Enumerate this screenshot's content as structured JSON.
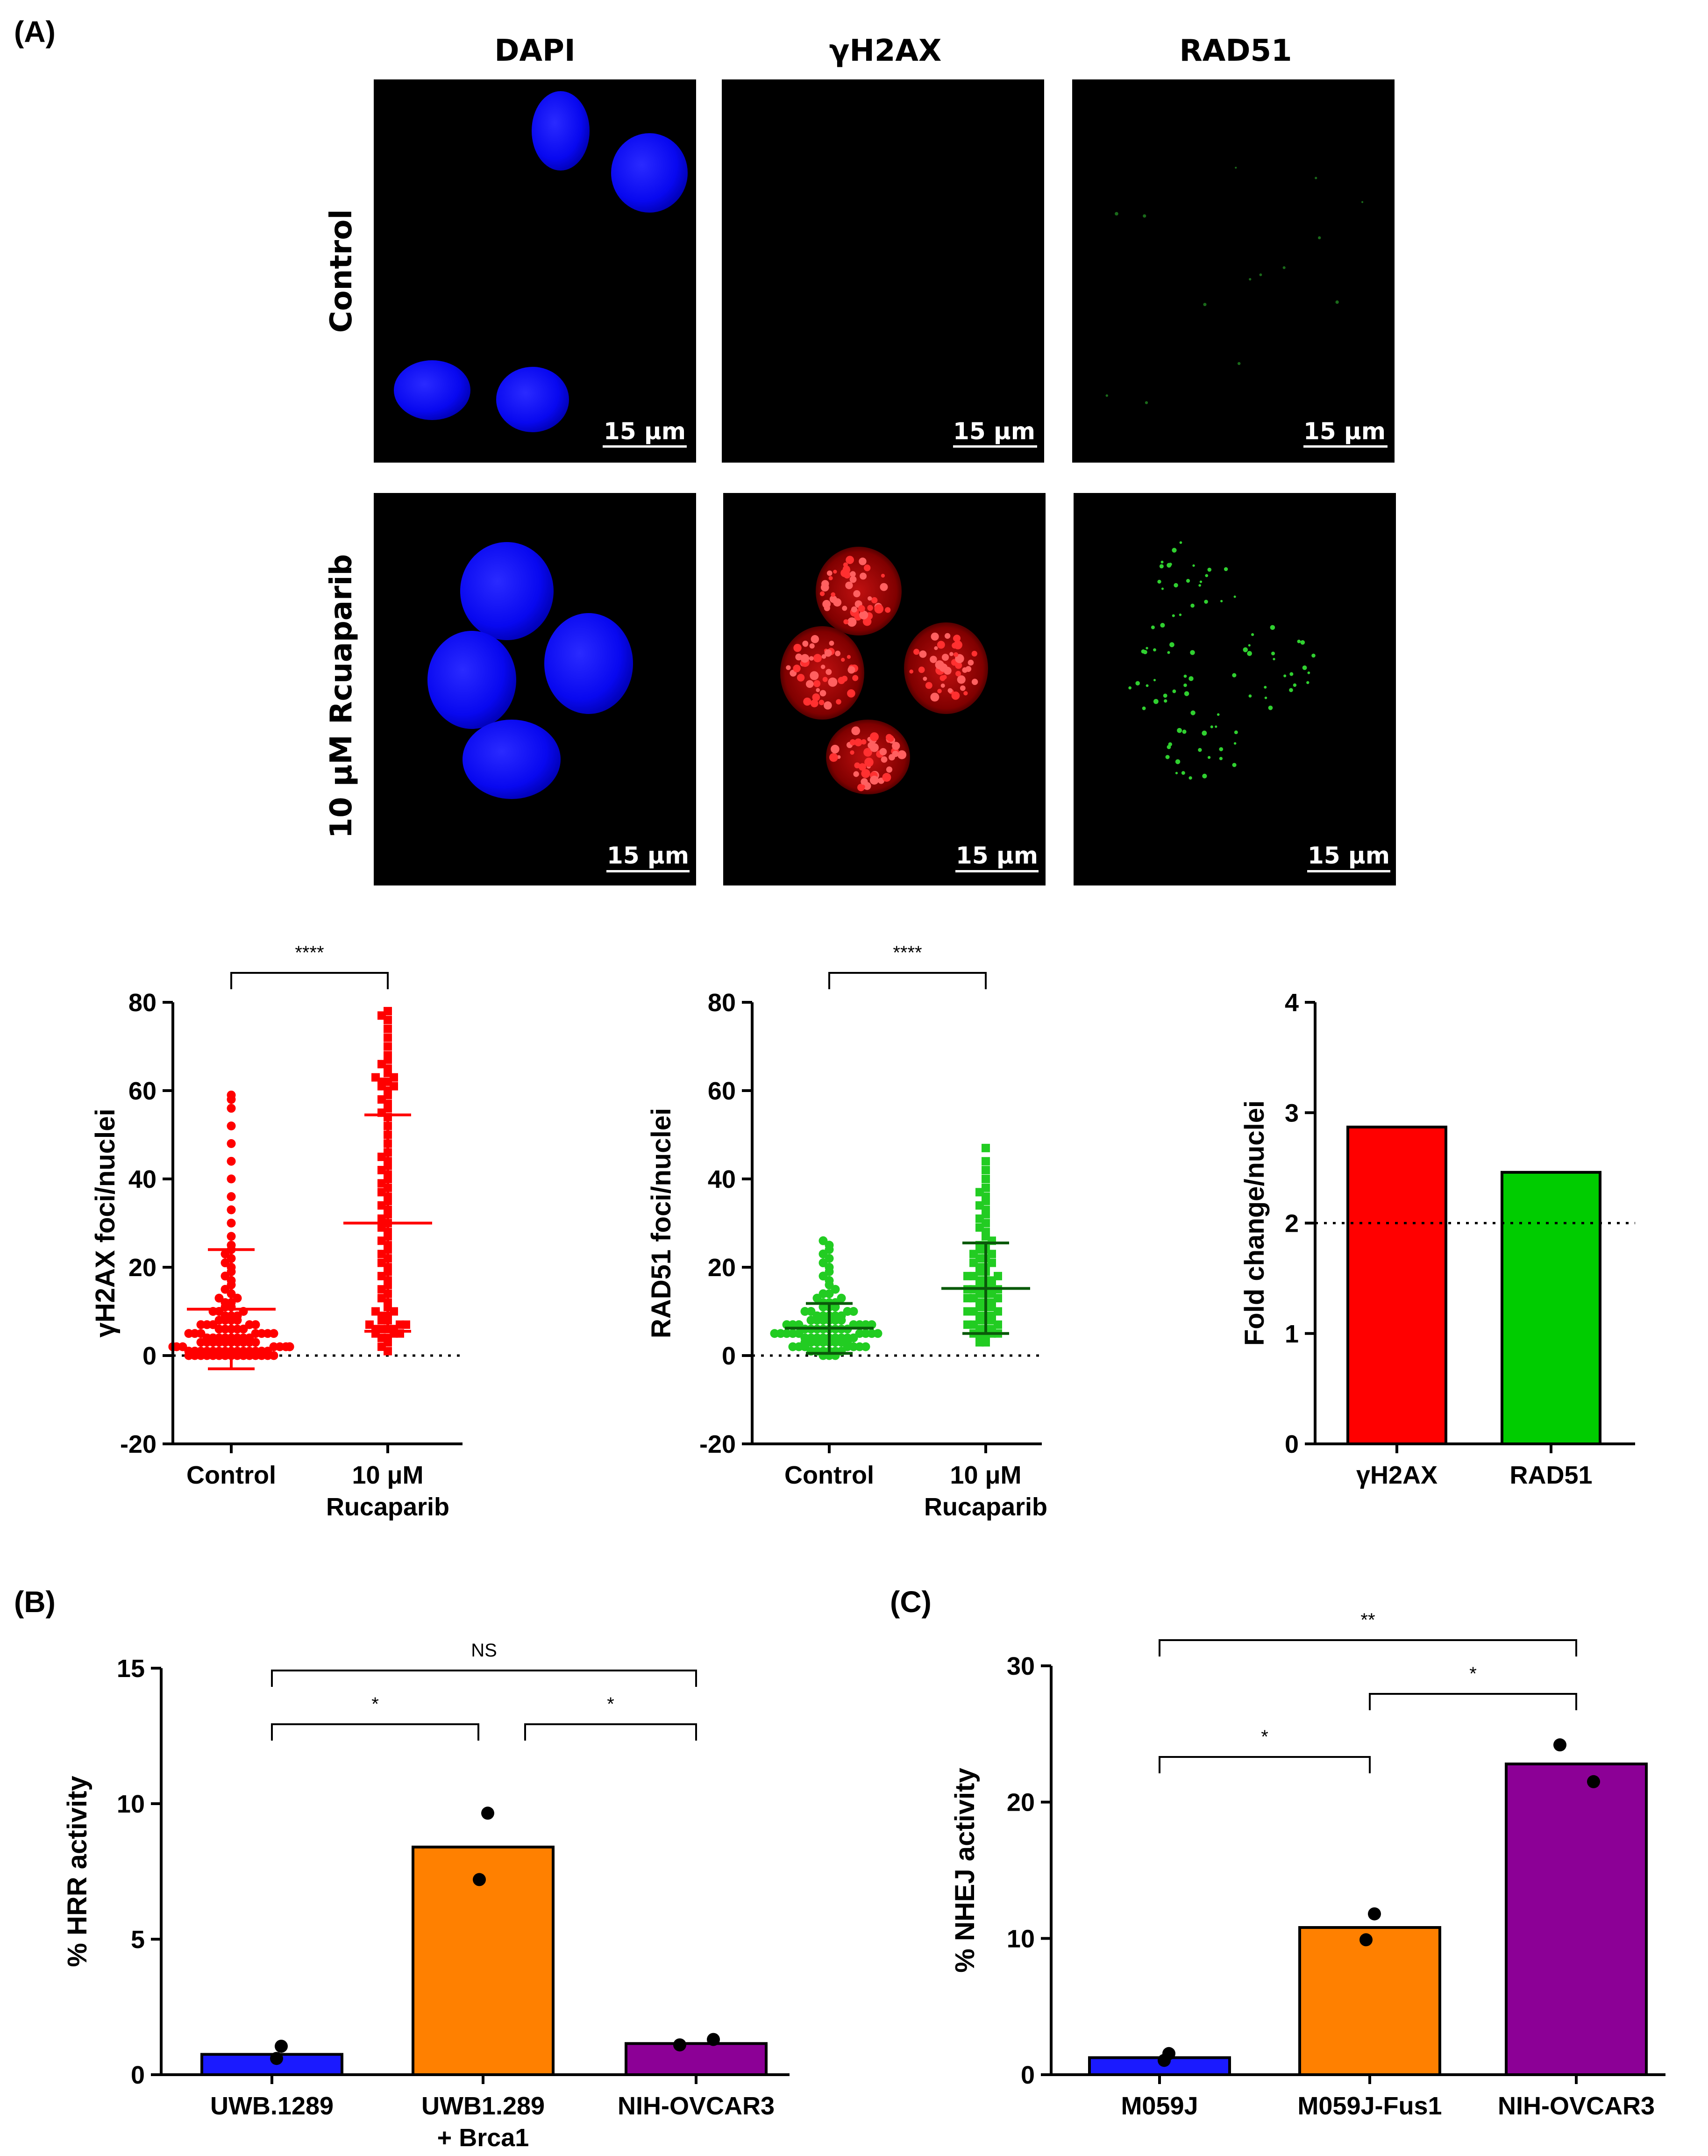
{
  "figure": {
    "panel_labels": [
      "(A)",
      "(B)",
      "(C)"
    ],
    "micrographs": {
      "columns": [
        "DAPI",
        "γH2AX",
        "RAD51"
      ],
      "rows": [
        "Control",
        "10 μM Rcuaparib"
      ],
      "scale_bar": "15 μm",
      "colors": {
        "DAPI": "#1010ff",
        "gH2AX": "#e01010",
        "RAD51": "#20c020",
        "background": "#000000"
      }
    }
  },
  "chart_data": [
    {
      "id": "gh2ax",
      "type": "scatter",
      "title": "",
      "ylabel": "γH2AX foci/nuclei",
      "ylim": [
        -20,
        80
      ],
      "yticks": [
        -20,
        0,
        20,
        40,
        60,
        80
      ],
      "categories": [
        {
          "lines": [
            "Control"
          ]
        },
        {
          "lines": [
            "10 μM",
            "Rucaparib"
          ]
        }
      ],
      "color": "#ff0000",
      "bar_color": "#ff0000",
      "reference_line": 0,
      "series": [
        {
          "name": "Control",
          "marker": "circle",
          "mean": 10.5,
          "sd_low": -3,
          "sd_high": 24,
          "values": [
            0,
            0,
            0,
            0,
            0,
            0,
            0,
            0,
            0,
            0,
            0,
            0,
            0,
            0,
            0,
            1,
            1,
            1,
            1,
            1,
            1,
            1,
            1,
            1,
            1,
            1,
            1,
            1,
            1,
            2,
            2,
            2,
            2,
            2,
            2,
            2,
            2,
            2,
            2,
            2,
            2,
            3,
            3,
            3,
            3,
            3,
            3,
            3,
            3,
            3,
            3,
            4,
            4,
            4,
            4,
            4,
            4,
            4,
            4,
            5,
            5,
            5,
            5,
            5,
            5,
            5,
            6,
            6,
            6,
            6,
            6,
            7,
            7,
            7,
            7,
            7,
            8,
            8,
            8,
            8,
            9,
            9,
            9,
            10,
            10,
            10,
            11,
            11,
            12,
            12,
            13,
            13,
            14,
            15,
            16,
            17,
            18,
            19,
            20,
            21,
            22,
            23,
            24,
            25,
            27,
            30,
            33,
            36,
            40,
            44,
            48,
            52,
            56,
            58,
            59
          ]
        },
        {
          "name": "10 μM Rucaparib",
          "marker": "square",
          "mean": 30,
          "sd_low": 5.5,
          "sd_high": 54.5,
          "values": [
            1,
            2,
            3,
            4,
            4,
            5,
            5,
            5,
            6,
            6,
            6,
            6,
            7,
            7,
            7,
            8,
            8,
            9,
            9,
            10,
            10,
            11,
            12,
            13,
            14,
            15,
            16,
            17,
            18,
            19,
            20,
            21,
            22,
            23,
            24,
            25,
            26,
            27,
            28,
            29,
            30,
            31,
            32,
            33,
            34,
            35,
            36,
            37,
            38,
            39,
            40,
            41,
            42,
            43,
            44,
            45,
            46,
            48,
            50,
            52,
            54,
            55,
            56,
            57,
            58,
            59,
            60,
            61,
            61,
            62,
            62,
            63,
            63,
            64,
            65,
            66,
            67,
            68,
            70,
            72,
            74,
            76,
            77,
            78
          ]
        }
      ],
      "significance": [
        {
          "pair": [
            0,
            1
          ],
          "label": "****"
        }
      ]
    },
    {
      "id": "rad51",
      "type": "scatter",
      "title": "",
      "ylabel": "RAD51 foci/nuclei",
      "ylim": [
        -20,
        80
      ],
      "yticks": [
        -20,
        0,
        20,
        40,
        60,
        80
      ],
      "categories": [
        {
          "lines": [
            "Control"
          ]
        },
        {
          "lines": [
            "10 μM",
            "Rucaparib"
          ]
        }
      ],
      "color": "#22cc22",
      "bar_color": "#0a5a0a",
      "reference_line": 0,
      "series": [
        {
          "name": "Control",
          "marker": "circle",
          "mean": 6.2,
          "sd_low": 0.5,
          "sd_high": 11.8,
          "values": [
            0,
            0,
            0,
            1,
            1,
            1,
            1,
            1,
            1,
            2,
            2,
            2,
            2,
            2,
            2,
            2,
            3,
            3,
            3,
            3,
            3,
            3,
            3,
            3,
            4,
            4,
            4,
            4,
            4,
            4,
            4,
            4,
            4,
            5,
            5,
            5,
            5,
            5,
            5,
            5,
            5,
            5,
            6,
            6,
            6,
            6,
            6,
            6,
            6,
            6,
            7,
            7,
            7,
            7,
            7,
            7,
            7,
            8,
            8,
            8,
            8,
            8,
            8,
            9,
            9,
            9,
            9,
            9,
            10,
            10,
            10,
            10,
            11,
            11,
            11,
            12,
            12,
            12,
            13,
            13,
            14,
            14,
            15,
            16,
            17,
            18,
            19,
            20,
            21,
            22,
            23,
            24,
            25,
            26
          ]
        },
        {
          "name": "10 μM Rucaparib",
          "marker": "square",
          "mean": 15.2,
          "sd_low": 5,
          "sd_high": 25.5,
          "values": [
            3,
            3,
            4,
            4,
            5,
            5,
            5,
            6,
            6,
            6,
            7,
            7,
            7,
            8,
            8,
            8,
            9,
            9,
            9,
            10,
            10,
            10,
            11,
            11,
            11,
            12,
            12,
            12,
            13,
            13,
            13,
            14,
            14,
            14,
            15,
            15,
            15,
            16,
            16,
            16,
            17,
            17,
            17,
            18,
            18,
            18,
            19,
            19,
            20,
            20,
            21,
            21,
            22,
            22,
            23,
            23,
            24,
            24,
            25,
            25,
            26,
            27,
            28,
            29,
            30,
            31,
            32,
            33,
            34,
            35,
            36,
            37,
            38,
            40,
            42,
            44,
            47
          ]
        }
      ],
      "significance": [
        {
          "pair": [
            0,
            1
          ],
          "label": "****"
        }
      ]
    },
    {
      "id": "fold",
      "type": "bar",
      "title": "",
      "ylabel": "Fold change/nuclei",
      "ylim": [
        0,
        4
      ],
      "yticks": [
        0,
        1,
        2,
        3,
        4
      ],
      "categories": [
        {
          "lines": [
            "γH2AX"
          ]
        },
        {
          "lines": [
            "RAD51"
          ]
        }
      ],
      "values": [
        2.87,
        2.46
      ],
      "colors": [
        "#ff0000",
        "#00cc00"
      ],
      "reference_line": 2
    },
    {
      "id": "hrr",
      "type": "bar",
      "title": "",
      "panel": "(B)",
      "ylabel": "% HRR activity",
      "ylim": [
        0,
        15
      ],
      "yticks": [
        0,
        5,
        10,
        15
      ],
      "categories": [
        {
          "lines": [
            "UWB.1289"
          ]
        },
        {
          "lines": [
            "UWB1.289",
            "+ Brca1"
          ]
        },
        {
          "lines": [
            "NIH-OVCAR3"
          ]
        }
      ],
      "values": [
        0.75,
        8.4,
        1.15
      ],
      "colors": [
        "#1a1aff",
        "#ff8000",
        "#8c0096"
      ],
      "points": [
        [
          0.6,
          1.05
        ],
        [
          9.65,
          7.2
        ],
        [
          1.1,
          1.3
        ]
      ],
      "significance": [
        {
          "pair": [
            0,
            1
          ],
          "label": "*",
          "level": 0
        },
        {
          "pair": [
            1,
            2
          ],
          "label": "*",
          "level": 0
        },
        {
          "pair": [
            0,
            2
          ],
          "label": "NS",
          "level": 1
        }
      ]
    },
    {
      "id": "nhej",
      "type": "bar",
      "title": "",
      "panel": "(C)",
      "ylabel": "% NHEJ activity",
      "ylim": [
        0,
        30
      ],
      "yticks": [
        0,
        10,
        20,
        30
      ],
      "categories": [
        {
          "lines": [
            "M059J"
          ]
        },
        {
          "lines": [
            "M059J-Fus1"
          ]
        },
        {
          "lines": [
            "NIH-OVCAR3"
          ]
        }
      ],
      "values": [
        1.25,
        10.8,
        22.8
      ],
      "colors": [
        "#1a1aff",
        "#ff8000",
        "#8c0096"
      ],
      "points": [
        [
          1.05,
          1.55
        ],
        [
          11.8,
          9.9
        ],
        [
          24.2,
          21.5
        ]
      ],
      "significance": [
        {
          "pair": [
            0,
            1
          ],
          "label": "*",
          "level": 0
        },
        {
          "pair": [
            1,
            2
          ],
          "label": "*",
          "level": 1
        },
        {
          "pair": [
            0,
            2
          ],
          "label": "**",
          "level": 2
        }
      ]
    }
  ]
}
